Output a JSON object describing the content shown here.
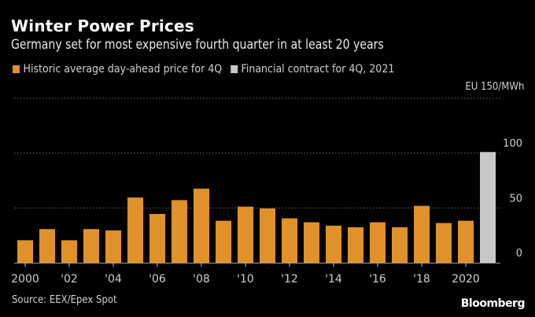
{
  "chart_data": {
    "type": "bar",
    "title": "Winter Power Prices",
    "subtitle": "Germany set for most expensive fourth quarter in at least 20 years",
    "unit_label": "EU 150/MWh",
    "ylabel": "EUR/MWh",
    "xlabel": "",
    "ylim": [
      0,
      150
    ],
    "yticks": [
      0,
      50,
      100,
      150
    ],
    "ytick_labels": [
      "0",
      "50",
      "100",
      ""
    ],
    "grid": true,
    "legend_position": "top-left",
    "categories": [
      "2000",
      "2001",
      "2002",
      "2003",
      "2004",
      "2005",
      "2006",
      "2007",
      "2008",
      "2009",
      "2010",
      "2011",
      "2012",
      "2013",
      "2014",
      "2015",
      "2016",
      "2017",
      "2018",
      "2019",
      "2020",
      "2021"
    ],
    "xtick_labels": [
      {
        "category": "2000",
        "label": "2000"
      },
      {
        "category": "2002",
        "label": "'02"
      },
      {
        "category": "2004",
        "label": "'04"
      },
      {
        "category": "2006",
        "label": "'06"
      },
      {
        "category": "2008",
        "label": "'08"
      },
      {
        "category": "2010",
        "label": "'10"
      },
      {
        "category": "2012",
        "label": "'12"
      },
      {
        "category": "2014",
        "label": "'14"
      },
      {
        "category": "2016",
        "label": "'16"
      },
      {
        "category": "2018",
        "label": "'18"
      },
      {
        "category": "2020",
        "label": "2020"
      }
    ],
    "series": [
      {
        "name": "Historic average day-ahead price for 4Q",
        "color": "#e0912a",
        "values": [
          20.5,
          30.7,
          20.5,
          30.7,
          29.5,
          59.5,
          44.5,
          57.1,
          67.6,
          38.3,
          51.2,
          49.5,
          40.5,
          36.9,
          33.8,
          32.4,
          36.9,
          32.4,
          51.9,
          36.2,
          38.3,
          null
        ]
      },
      {
        "name": "Financial contract for 4Q, 2021",
        "color": "#c8c8c8",
        "values": [
          null,
          null,
          null,
          null,
          null,
          null,
          null,
          null,
          null,
          null,
          null,
          null,
          null,
          null,
          null,
          null,
          null,
          null,
          null,
          null,
          null,
          101
        ]
      }
    ],
    "source": "Source: EEX/Epex Spot",
    "brand": "Bloomberg"
  }
}
